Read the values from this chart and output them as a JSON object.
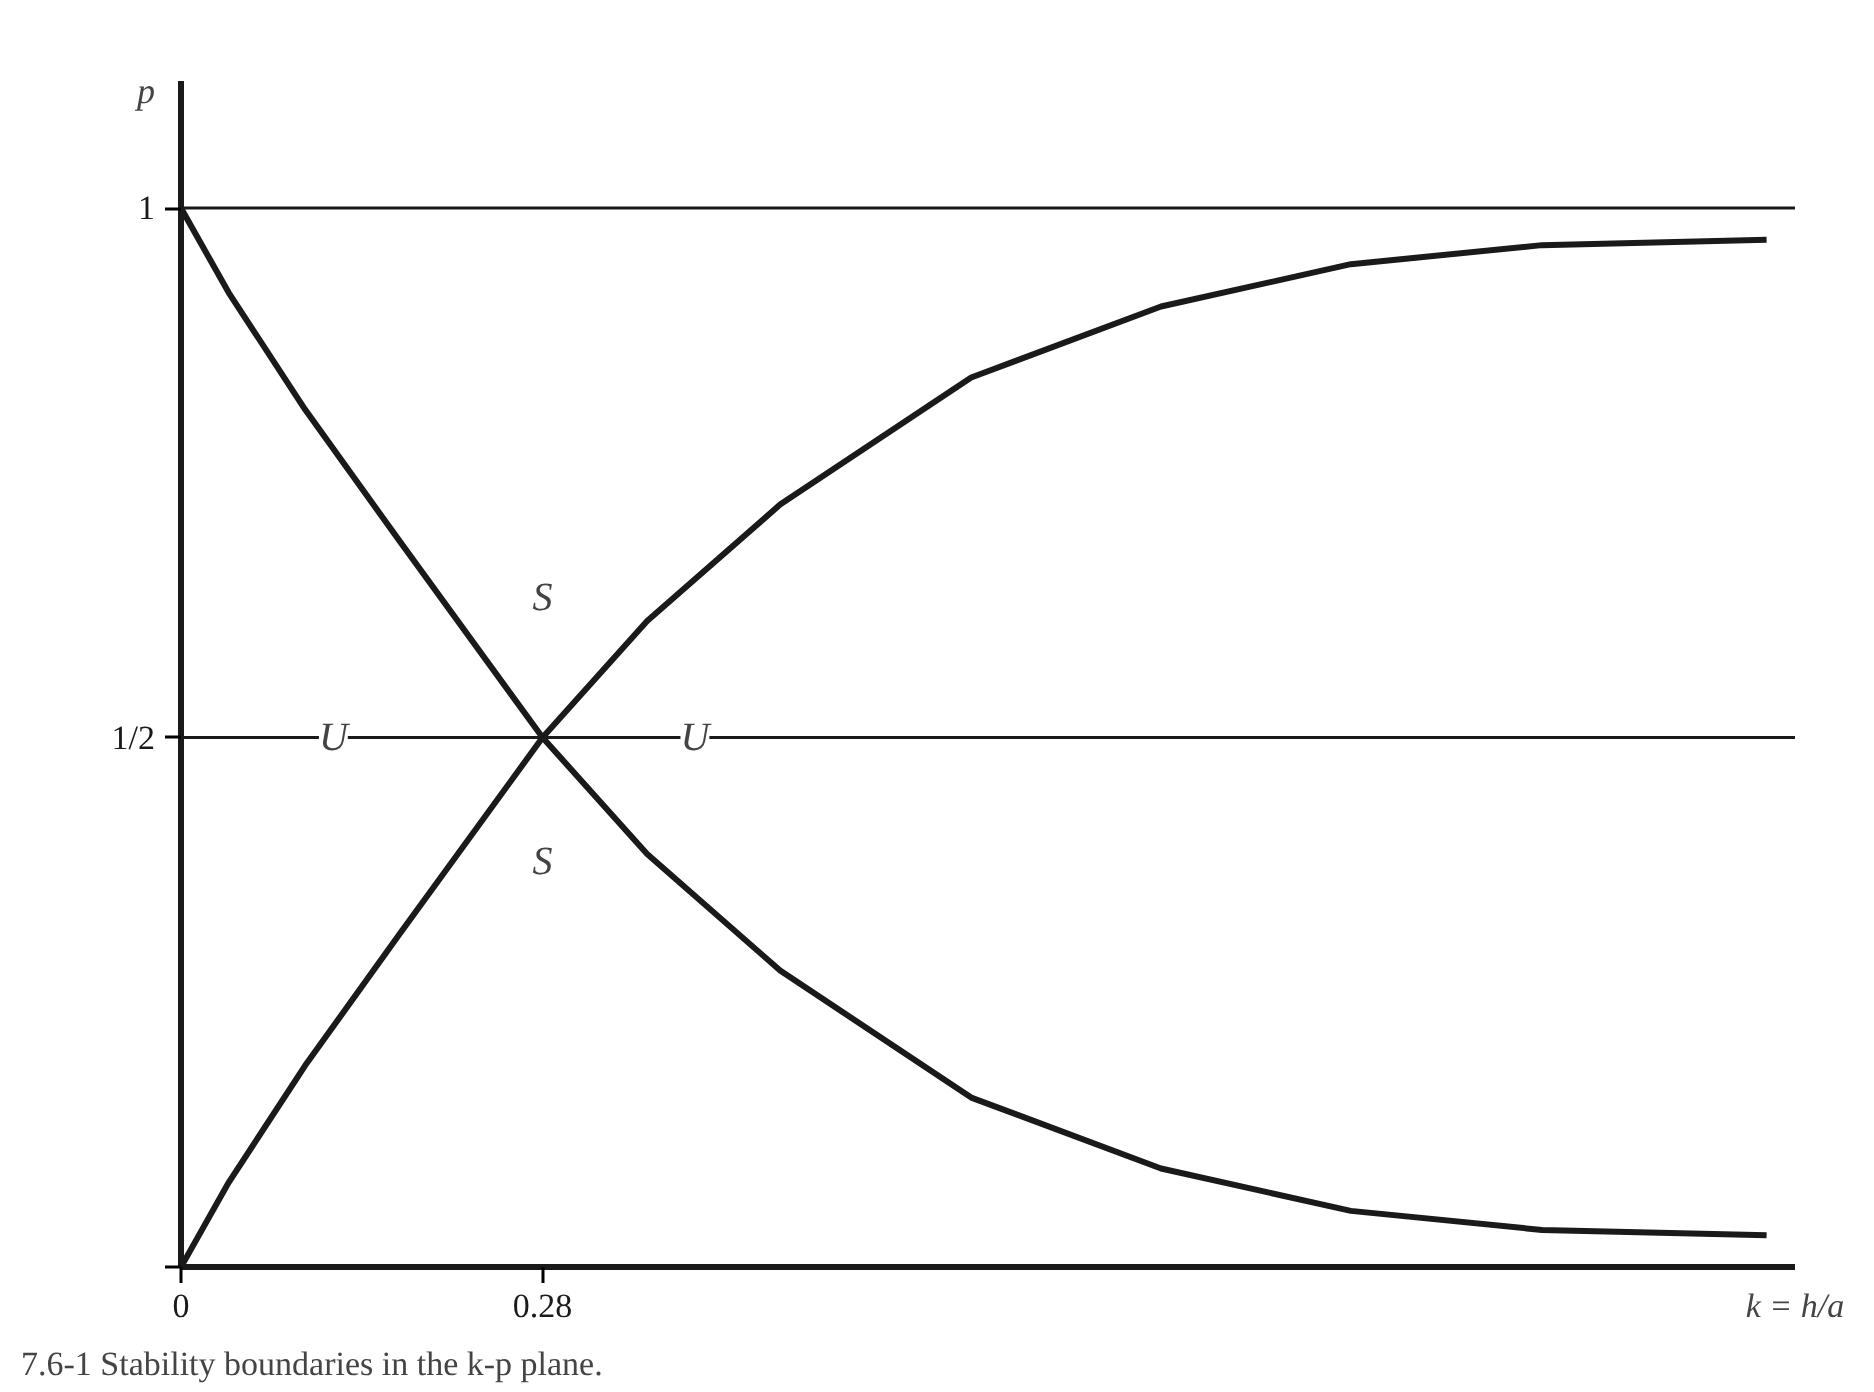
{
  "chart_data": {
    "type": "line",
    "xlabel": "k = h/a",
    "ylabel": "p",
    "xlim": [
      0,
      1.25
    ],
    "ylim": [
      0,
      1.12
    ],
    "xticks": [
      {
        "value": 0,
        "label": "0"
      },
      {
        "value": 0.28,
        "label": "0.28"
      }
    ],
    "yticks": [
      {
        "value": 0,
        "label": null
      },
      {
        "value": 0.5,
        "label": "1/2"
      },
      {
        "value": 1,
        "label": "1"
      }
    ],
    "grid": false,
    "marker": "none",
    "line_style": "solid",
    "series": [
      {
        "color": "#1a1a1a",
        "x": [
          0,
          0.037,
          0.096,
          0.169,
          0.28,
          0.361,
          0.464,
          0.612,
          0.759,
          0.906,
          1.054,
          1.228
        ],
        "values": [
          1.0,
          0.92,
          0.81,
          0.686,
          0.5,
          0.39,
          0.28,
          0.16,
          0.093,
          0.053,
          0.035,
          0.03
        ]
      },
      {
        "color": "#1a1a1a",
        "x": [
          0,
          0.037,
          0.096,
          0.169,
          0.28,
          0.361,
          0.464,
          0.612,
          0.759,
          0.906,
          1.054,
          1.228
        ],
        "values": [
          0.0,
          0.08,
          0.19,
          0.314,
          0.5,
          0.61,
          0.72,
          0.84,
          0.907,
          0.947,
          0.965,
          0.97
        ]
      }
    ],
    "ref_lines": [
      {
        "axis": "y",
        "value": 1,
        "color": "#1a1a1a"
      },
      {
        "axis": "y",
        "value": 0.5,
        "color": "#1a1a1a"
      }
    ],
    "annotations": [
      "S",
      "S",
      {
        "text": "U",
        "x": 0.118,
        "y": 0.5
      },
      {
        "text": "U",
        "x": 0.398,
        "y": 0.5
      },
      "7.6-1 Stability boundaries in the k-p plane."
    ]
  }
}
